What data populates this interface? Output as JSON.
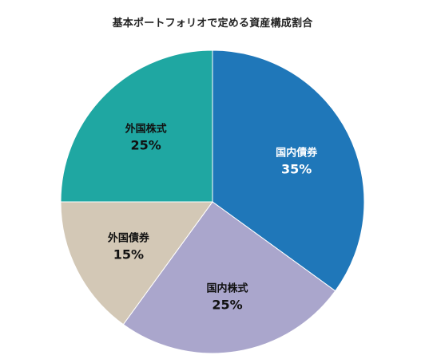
{
  "chart_data": {
    "type": "pie",
    "title": "基本ポートフォリオで定める資産構成割合",
    "start_angle_deg": 0,
    "direction": "clockwise",
    "slices": [
      {
        "label": "国内債券",
        "value": 35,
        "display": "35%",
        "color": "#1f77b9",
        "text_color": "#ffffff"
      },
      {
        "label": "国内株式",
        "value": 25,
        "display": "25%",
        "color": "#aaa6cc",
        "text_color": "#111111"
      },
      {
        "label": "外国債券",
        "value": 15,
        "display": "15%",
        "color": "#d3c8b6",
        "text_color": "#111111"
      },
      {
        "label": "外国株式",
        "value": 25,
        "display": "25%",
        "color": "#1fa7a2",
        "text_color": "#111111"
      }
    ]
  }
}
